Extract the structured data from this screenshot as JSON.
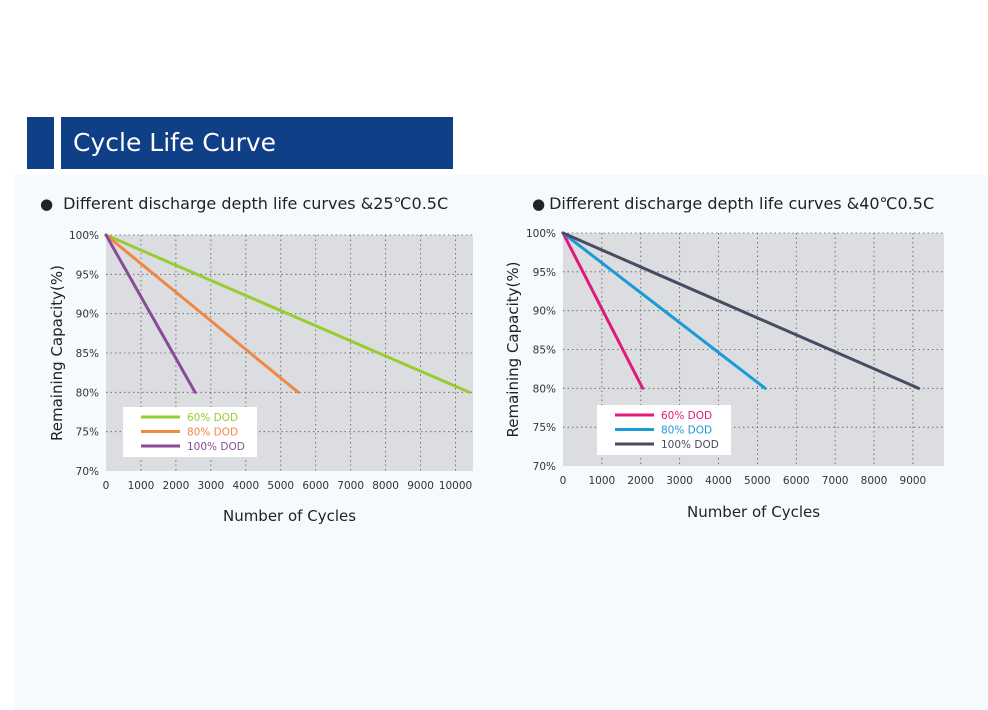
{
  "header": {
    "title": "Cycle Life Curve"
  },
  "colors": {
    "header_bg": "#0f3f87",
    "panel_bg": "#f7fafc",
    "plot_bg": "#dbdde0"
  },
  "chart_data": [
    {
      "type": "line",
      "title": "Different discharge depth life curves &25℃0.5C",
      "xlabel": "Number of Cycles",
      "ylabel": "Remaining Capacity(%)",
      "xlim": [
        0,
        10500
      ],
      "ylim": [
        70,
        100
      ],
      "x_ticks": [
        "0",
        "1000",
        "2000",
        "3000",
        "4000",
        "5000",
        "6000",
        "7000",
        "8000",
        "9000",
        "10000"
      ],
      "y_ticks": [
        "70%",
        "75%",
        "80%",
        "85%",
        "90%",
        "95%",
        "100%"
      ],
      "grid": true,
      "legend_position": "bottom-left",
      "series": [
        {
          "name": "60% DOD",
          "color": "#99cc33",
          "x": [
            0,
            10400
          ],
          "y": [
            100,
            80
          ]
        },
        {
          "name": "80% DOD",
          "color": "#ee8844",
          "x": [
            0,
            5500
          ],
          "y": [
            100,
            80
          ]
        },
        {
          "name": "100% DOD",
          "color": "#8a4a99",
          "x": [
            0,
            2550
          ],
          "y": [
            100,
            80
          ]
        }
      ]
    },
    {
      "type": "line",
      "title": "Different discharge depth life curves &40℃0.5C",
      "xlabel": "Number of Cycles",
      "ylabel": "Remaining Capacity(%)",
      "xlim": [
        0,
        9800
      ],
      "ylim": [
        70,
        100
      ],
      "x_ticks": [
        "0",
        "1000",
        "2000",
        "3000",
        "4000",
        "5000",
        "6000",
        "7000",
        "8000",
        "9000"
      ],
      "y_ticks": [
        "70%",
        "75%",
        "80%",
        "85%",
        "90%",
        "95%",
        "100%"
      ],
      "grid": true,
      "legend_position": "bottom-left",
      "series": [
        {
          "name": "60% DOD",
          "color": "#e0197d",
          "x": [
            0,
            2050
          ],
          "y": [
            100,
            80
          ]
        },
        {
          "name": "80% DOD",
          "color": "#1a9ad6",
          "x": [
            0,
            5200
          ],
          "y": [
            100,
            80
          ]
        },
        {
          "name": "100% DOD",
          "color": "#4a4a63",
          "x": [
            0,
            9150
          ],
          "y": [
            100,
            80
          ]
        }
      ]
    }
  ]
}
